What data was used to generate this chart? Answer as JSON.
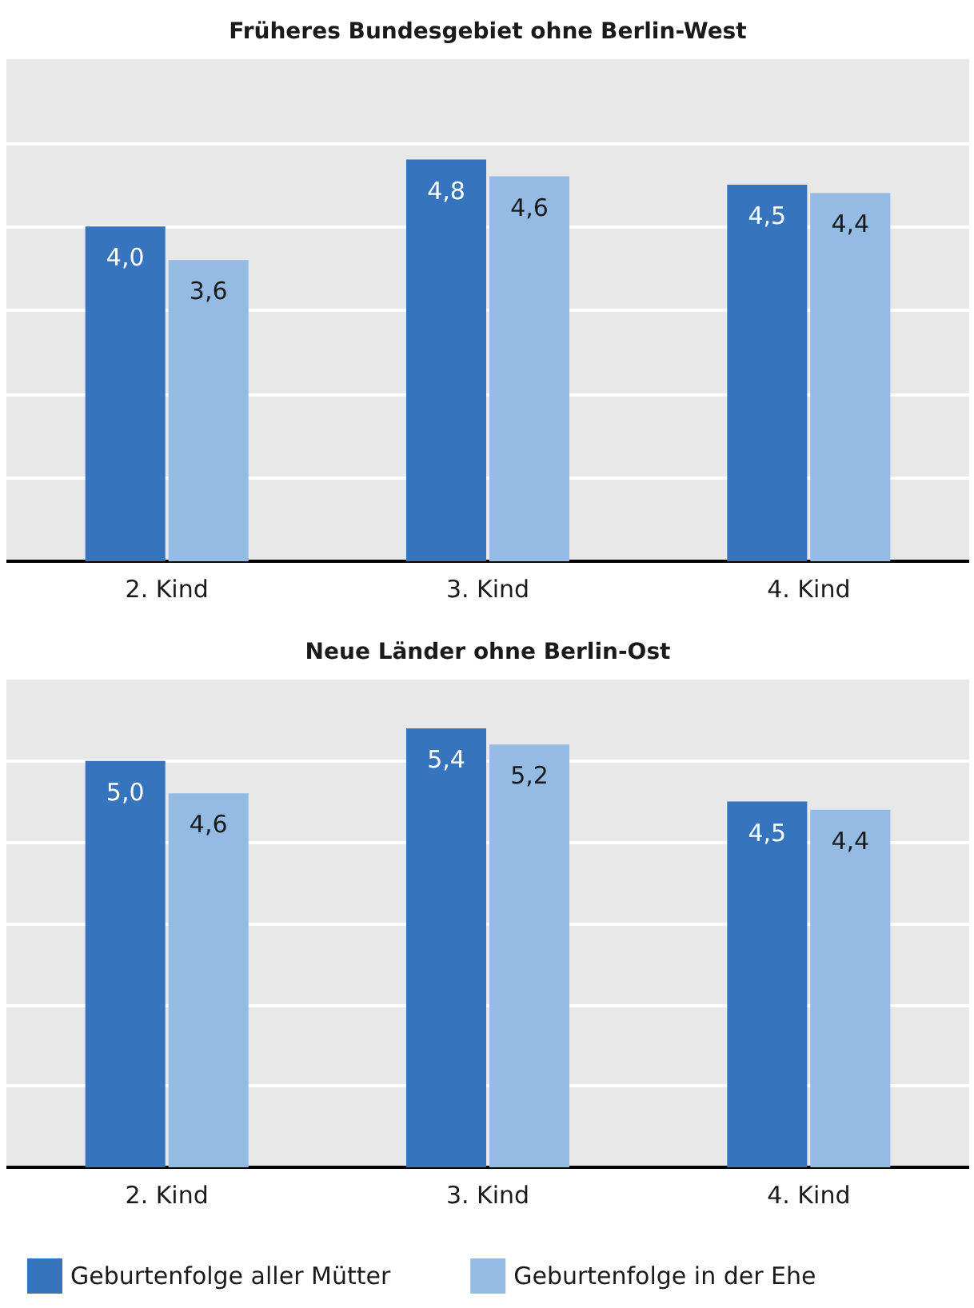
{
  "chart_data": [
    {
      "type": "bar",
      "title": "Früheres Bundesgebiet ohne Berlin-West",
      "categories": [
        "2. Kind",
        "3. Kind",
        "4. Kind"
      ],
      "series": [
        {
          "color": "#3674bd",
          "values": [
            4.0,
            4.8,
            4.5
          ],
          "value_labels": [
            "4,0",
            "4,8",
            "4,5"
          ]
        },
        {
          "color": "#93bbe3",
          "values": [
            3.6,
            4.6,
            4.4
          ],
          "value_labels": [
            "3,6",
            "4,6",
            "4,4"
          ]
        }
      ],
      "ylim": [
        0,
        6
      ],
      "yticks": [
        {
          "value": 1,
          "label": null
        },
        {
          "value": 2,
          "label": null
        },
        {
          "value": 3,
          "label": null
        },
        {
          "value": 4,
          "label": null
        },
        {
          "value": 5,
          "label": null
        }
      ],
      "grid": "y",
      "tick_labels": "x",
      "legend": false
    },
    {
      "type": "bar",
      "title": "Neue Länder ohne Berlin-Ost",
      "categories": [
        "2. Kind",
        "3. Kind",
        "4. Kind"
      ],
      "series": [
        {
          "name": "Geburtenfolge aller Mütter",
          "color": "#3674bd",
          "values": [
            5.0,
            5.4,
            4.5
          ],
          "value_labels": [
            "5,0",
            "5,4",
            "4,5"
          ]
        },
        {
          "name": "Geburtenfolge in der Ehe",
          "color": "#93bbe3",
          "values": [
            4.6,
            5.2,
            4.4
          ],
          "value_labels": [
            "4,6",
            "5,2",
            "4,4"
          ]
        }
      ],
      "ylim": [
        0,
        6
      ],
      "yticks": [
        {
          "value": 1,
          "label": null
        },
        {
          "value": 2,
          "label": null
        },
        {
          "value": 3,
          "label": null
        },
        {
          "value": 4,
          "label": null
        },
        {
          "value": 5,
          "label": null
        }
      ],
      "grid": "y",
      "tick_labels": "x",
      "legend": "bottom"
    }
  ]
}
